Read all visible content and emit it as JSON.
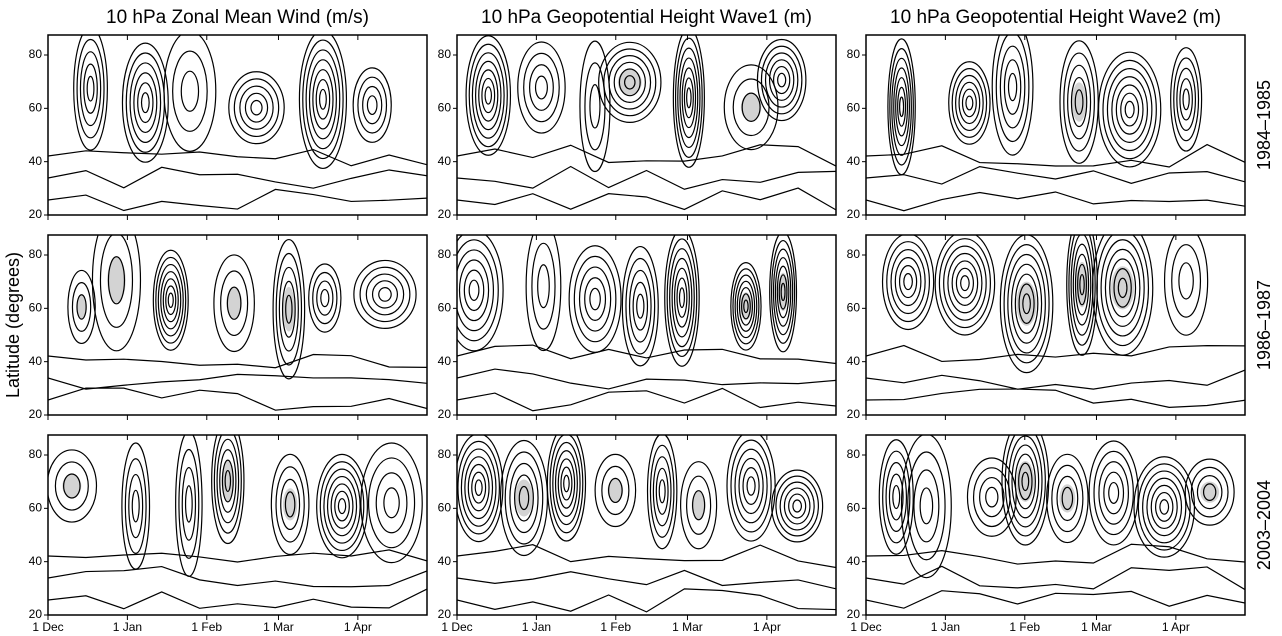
{
  "chart_data": {
    "type": "contour",
    "titles": [
      "10 hPa Zonal Mean Wind (m/s)",
      "10 hPa Geopotential Height Wave1 (m)",
      "10 hPa Geopotential Height Wave2 (m)"
    ],
    "rows": [
      "1984–1985",
      "1986–1987",
      "2003–2004"
    ],
    "ylabel": "Latitude (degrees)",
    "xlim": [
      0,
      148
    ],
    "ylim": [
      20,
      87.5
    ],
    "xticks": [
      {
        "value": 0,
        "label": "1 Dec"
      },
      {
        "value": 31,
        "label": "1 Jan"
      },
      {
        "value": 62,
        "label": "1 Feb"
      },
      {
        "value": 90,
        "label": "1 Mar"
      },
      {
        "value": 121,
        "label": "1 Apr"
      }
    ],
    "yticks": [
      20,
      40,
      60,
      80
    ],
    "shade": "#d3d3d3"
  }
}
